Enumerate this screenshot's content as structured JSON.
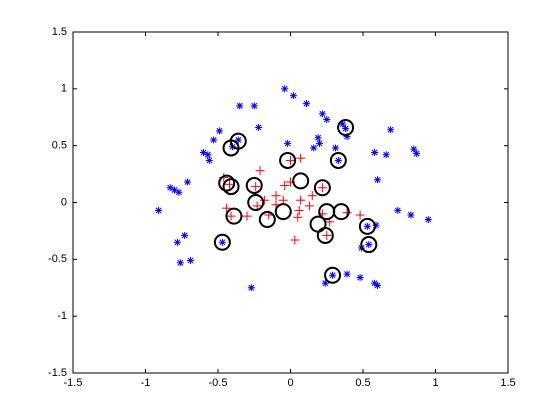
{
  "chart_data": {
    "type": "scatter",
    "xlim": [
      -1.5,
      1.5
    ],
    "ylim": [
      -1.5,
      1.5
    ],
    "xticks": [
      -1.5,
      -1,
      -0.5,
      0,
      0.5,
      1,
      1.5
    ],
    "yticks": [
      -1.5,
      -1,
      -0.5,
      0,
      0.5,
      1,
      1.5
    ],
    "grid": false,
    "series": [
      {
        "color": "#0000ff",
        "marker": "asterisk",
        "x": [
          -0.91,
          -0.83,
          -0.8,
          -0.77,
          -0.71,
          -0.78,
          -0.73,
          -0.76,
          -0.69,
          -0.6,
          -0.57,
          -0.56,
          -0.53,
          -0.49,
          -0.35,
          -0.25,
          -0.22,
          -0.47,
          -0.27,
          -0.04,
          0.02,
          0.11,
          0.22,
          0.25,
          0.36,
          0.38,
          0.39,
          0.19,
          0.2,
          0.16,
          -0.02,
          0.31,
          0.69,
          0.66,
          0.58,
          0.6,
          0.85,
          0.87,
          0.74,
          0.83,
          0.95,
          0.59,
          0.49,
          0.39,
          0.48,
          0.58,
          0.6,
          0.24,
          0.29,
          0.33,
          -0.4,
          -0.36,
          0.54,
          0.53
        ],
        "values": [
          -0.07,
          0.13,
          0.11,
          0.09,
          0.18,
          -0.35,
          -0.29,
          -0.53,
          -0.51,
          0.44,
          0.42,
          0.37,
          0.55,
          0.63,
          0.85,
          0.85,
          0.66,
          -0.35,
          -0.75,
          1.0,
          0.94,
          0.87,
          0.78,
          0.73,
          0.69,
          0.65,
          0.58,
          0.57,
          0.52,
          0.48,
          0.52,
          0.48,
          0.64,
          0.42,
          0.44,
          0.2,
          0.47,
          0.43,
          -0.07,
          -0.11,
          -0.15,
          -0.2,
          -0.4,
          -0.63,
          -0.66,
          -0.71,
          -0.73,
          -0.71,
          -0.64,
          0.37,
          0.49,
          0.55,
          -0.37,
          -0.21
        ]
      },
      {
        "color": "#ff0000",
        "marker": "plus",
        "x": [
          -0.21,
          -0.04,
          0.0,
          0.07,
          0.0,
          -0.1,
          -0.05,
          0.07,
          0.06,
          0.05,
          0.03,
          -0.18,
          -0.3,
          -0.44,
          -0.46,
          -0.42,
          -0.23,
          0.15,
          0.13,
          0.22,
          0.27,
          0.39,
          0.48,
          -0.1,
          -0.15,
          -0.41,
          -0.24,
          0.22,
          0.25
        ],
        "values": [
          0.28,
          0.15,
          0.18,
          0.39,
          0.37,
          0.06,
          0.02,
          0.02,
          -0.07,
          -0.13,
          -0.33,
          0.02,
          -0.12,
          -0.05,
          0.22,
          0.16,
          -0.03,
          0.06,
          -0.03,
          -0.1,
          -0.17,
          -0.09,
          -0.11,
          -0.02,
          -0.11,
          -0.12,
          0.14,
          0.13,
          -0.29
        ]
      },
      {
        "color": "#000000",
        "marker": "circle",
        "x": [
          -0.41,
          -0.36,
          -0.44,
          -0.41,
          -0.25,
          -0.24,
          -0.39,
          -0.47,
          -0.16,
          -0.05,
          -0.02,
          0.07,
          0.22,
          0.19,
          0.25,
          0.24,
          0.35,
          0.33,
          0.38,
          0.53,
          0.54,
          0.29
        ],
        "values": [
          0.48,
          0.54,
          0.17,
          0.14,
          0.15,
          0.0,
          -0.12,
          -0.35,
          -0.15,
          -0.08,
          0.37,
          0.19,
          0.13,
          -0.19,
          -0.08,
          -0.29,
          -0.08,
          0.37,
          0.66,
          -0.21,
          -0.37,
          -0.64
        ]
      }
    ]
  }
}
